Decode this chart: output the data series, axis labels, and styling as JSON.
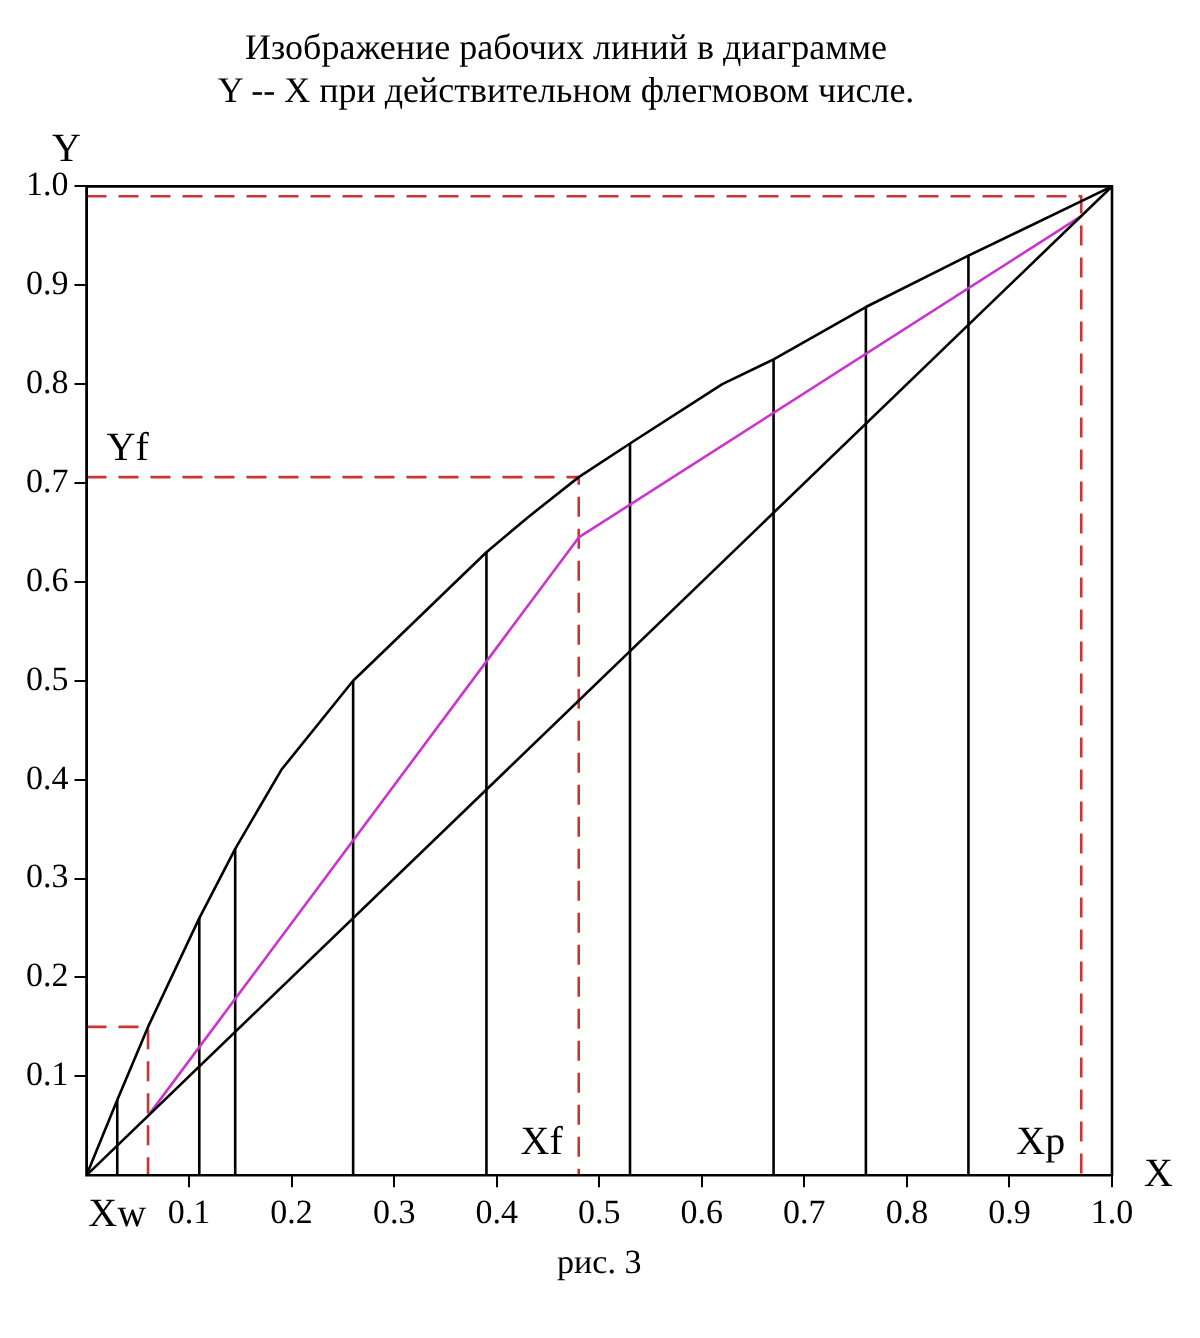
{
  "chart_data": {
    "type": "line",
    "title": "Изображение рабочих линий в диаграмме\nY -- X при действительном флегмовом числе.",
    "xlabel": "X",
    "ylabel": "Y",
    "xlim": [
      0,
      1
    ],
    "ylim": [
      0,
      1
    ],
    "xticks": [
      0.1,
      0.2,
      0.3,
      0.4,
      0.5,
      0.6,
      0.7,
      0.8,
      0.9,
      {
        "value": 1,
        "label": "1.0"
      }
    ],
    "yticks": [
      0.1,
      0.2,
      0.3,
      0.4,
      0.5,
      0.6,
      0.7,
      0.8,
      0.9,
      {
        "value": 1,
        "label": "1.0"
      }
    ],
    "legend": false,
    "marker": "none",
    "series": [
      {
        "color": "#000000",
        "x": [
          0,
          0.03,
          0.06,
          0.11,
          0.145,
          0.19,
          0.26,
          0.3,
          0.35,
          0.39,
          0.43,
          0.48,
          0.53,
          0.62,
          0.67,
          0.76,
          0.86,
          1
        ],
        "values": [
          0,
          0.076,
          0.15,
          0.26,
          0.33,
          0.41,
          0.5,
          0.54,
          0.59,
          0.63,
          0.665,
          0.706,
          0.74,
          0.8,
          0.825,
          0.878,
          0.93,
          1
        ]
      },
      {
        "color": "#000000",
        "x": [
          0,
          1
        ],
        "values": [
          0,
          1
        ]
      },
      {
        "color": "#cc33cc",
        "x": [
          0.06,
          0.48,
          0.97
        ],
        "values": [
          0.06,
          0.645,
          0.97
        ]
      },
      {
        "color": "#000000",
        "x": [
          0.03,
          0.03
        ],
        "values": [
          0,
          0.076
        ]
      },
      {
        "color": "#000000",
        "x": [
          0.11,
          0.11
        ],
        "values": [
          0,
          0.26
        ]
      },
      {
        "color": "#000000",
        "x": [
          0.145,
          0.145
        ],
        "values": [
          0,
          0.33
        ]
      },
      {
        "color": "#000000",
        "x": [
          0.26,
          0.26
        ],
        "values": [
          0,
          0.5
        ]
      },
      {
        "color": "#000000",
        "x": [
          0.39,
          0.39
        ],
        "values": [
          0,
          0.63
        ]
      },
      {
        "color": "#000000",
        "x": [
          0.53,
          0.53
        ],
        "values": [
          0,
          0.74
        ]
      },
      {
        "color": "#000000",
        "x": [
          0.67,
          0.67
        ],
        "values": [
          0,
          0.825
        ]
      },
      {
        "color": "#000000",
        "x": [
          0.76,
          0.76
        ],
        "values": [
          0,
          0.878
        ]
      },
      {
        "color": "#000000",
        "x": [
          0.86,
          0.86
        ],
        "values": [
          0,
          0.93
        ]
      },
      {
        "color": "#cc3333",
        "line_style": "dashed",
        "x": [
          0,
          0.06,
          0.06
        ],
        "values": [
          0.15,
          0.15,
          0
        ]
      },
      {
        "color": "#cc3333",
        "line_style": "dashed",
        "x": [
          0,
          0.48,
          0.48
        ],
        "values": [
          0.706,
          0.706,
          0
        ]
      },
      {
        "color": "#cc3333",
        "line_style": "dashed",
        "x": [
          0,
          0.97,
          0.97
        ],
        "values": [
          0.99,
          0.99,
          0
        ]
      }
    ],
    "annotations": [
      {
        "text": "Yf",
        "x": 0,
        "y": 0.706
      },
      {
        "text": "Xf",
        "x": 0.48,
        "y": 0
      },
      {
        "text": "Xp",
        "x": 0.97,
        "y": 0
      },
      {
        "text": "Xw",
        "x": 0.06,
        "y": 0
      },
      "рис. 3"
    ]
  }
}
